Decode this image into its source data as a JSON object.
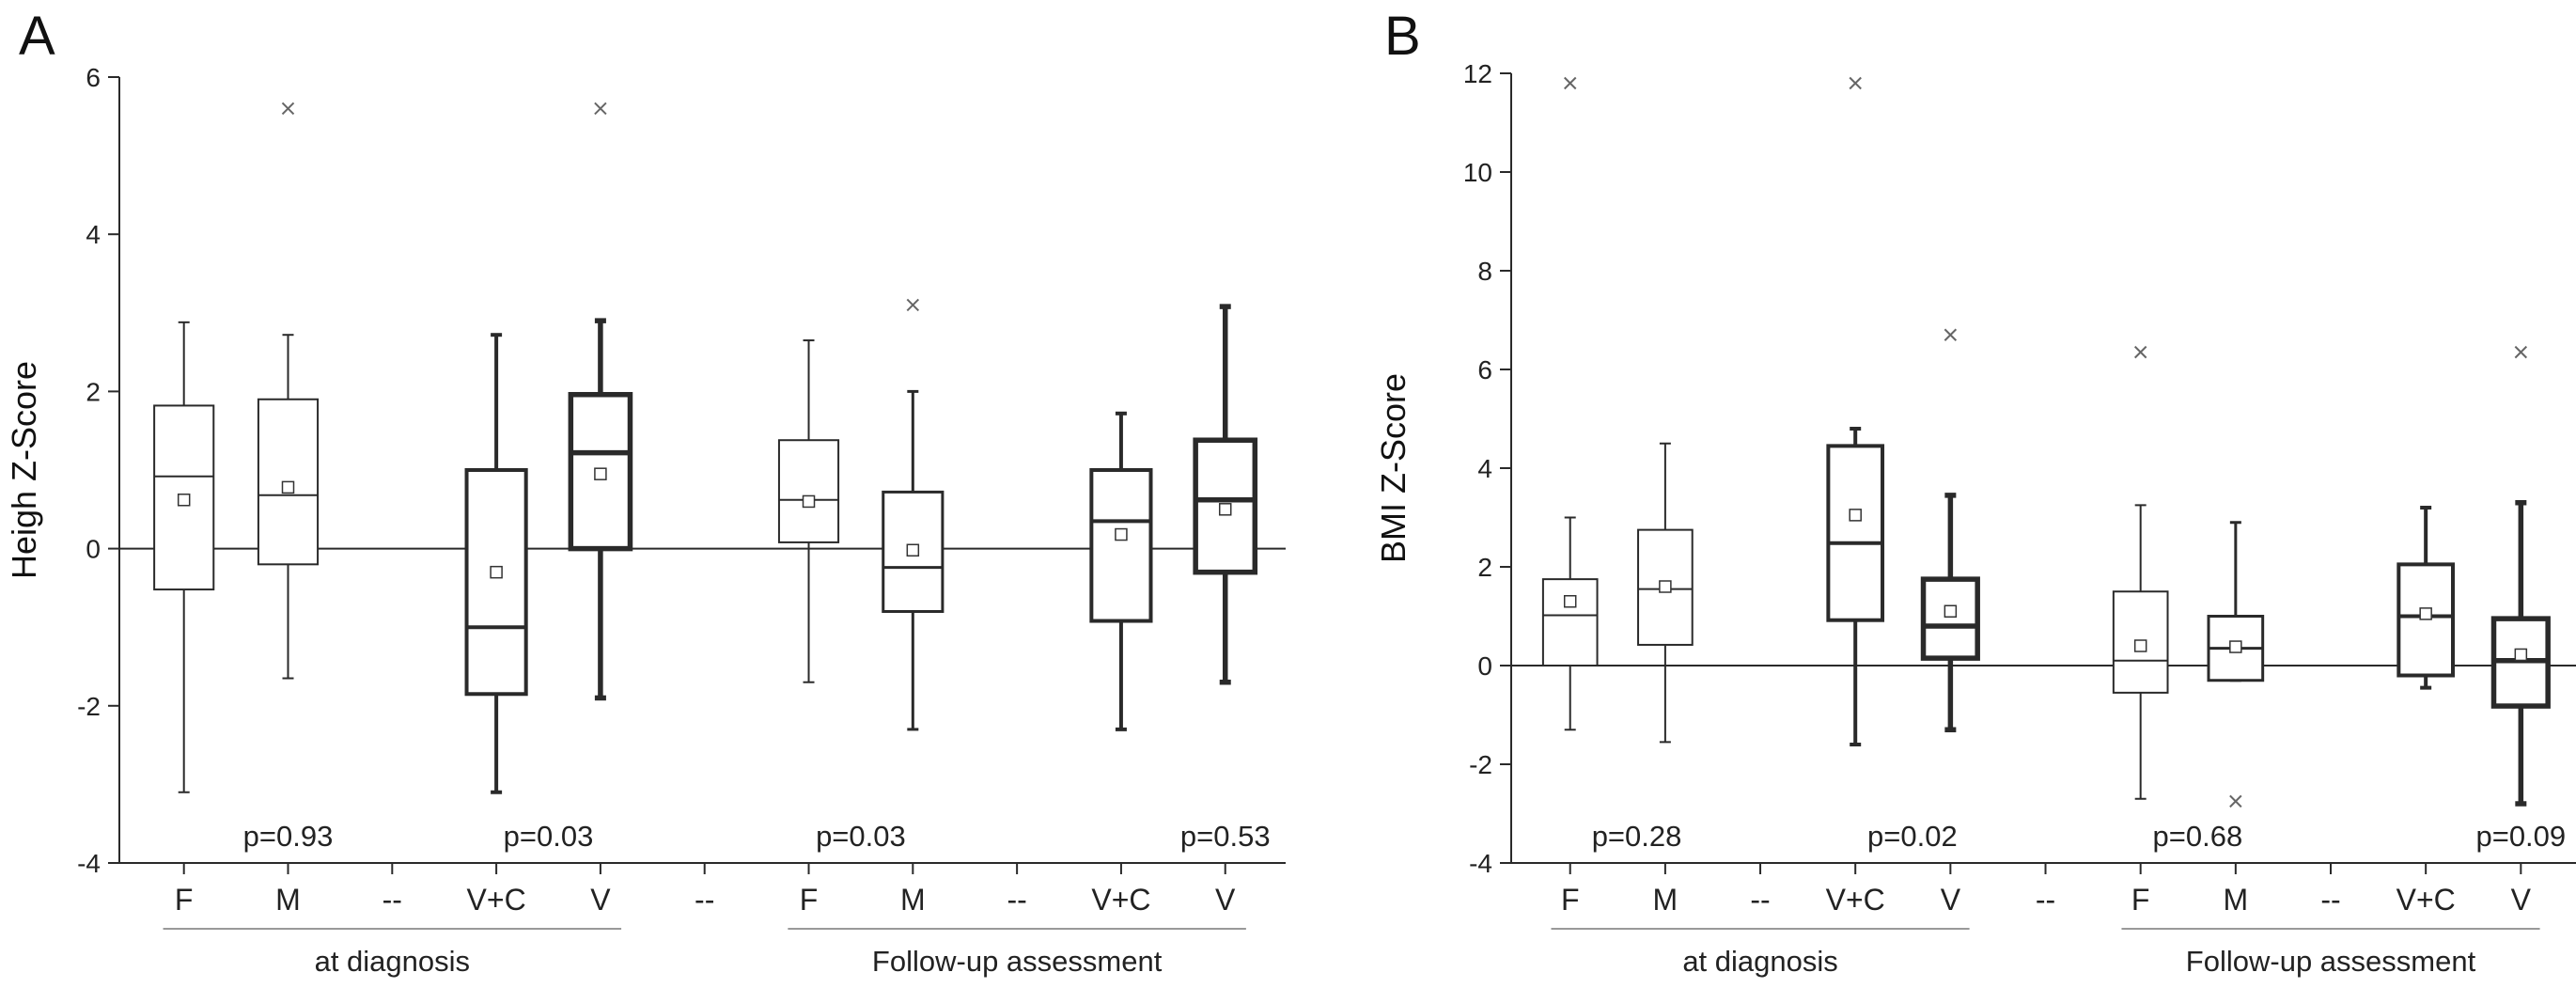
{
  "chart_data": [
    {
      "panel_label": "A",
      "type": "box",
      "ylabel": "Heigh Z-Score",
      "ylim": [
        -4,
        6
      ],
      "yticks": [
        -4,
        -2,
        0,
        2,
        4,
        6
      ],
      "reference_line": 0,
      "categories": [
        "F",
        "M",
        "--",
        "V+C",
        "V",
        "--",
        "F",
        "M",
        "--",
        "V+C",
        "V"
      ],
      "groups": [
        {
          "label": "at diagnosis",
          "from": 0,
          "to": 4
        },
        {
          "label": "Follow-up assessment",
          "from": 6,
          "to": 10
        }
      ],
      "p_values": [
        {
          "text": "p=0.93",
          "at": 1.0
        },
        {
          "text": "p=0.03",
          "at": 3.5
        },
        {
          "text": "p=0.03",
          "at": 6.5
        },
        {
          "text": "p=0.53",
          "at": 10.0
        }
      ],
      "boxes": [
        {
          "category": "F",
          "pos": 0,
          "style": "thin",
          "q1": -0.52,
          "median": 0.92,
          "q3": 1.82,
          "whisker_low": -3.1,
          "whisker_high": 2.88,
          "mean": 0.62,
          "outliers": []
        },
        {
          "category": "M",
          "pos": 1,
          "style": "thin",
          "q1": -0.2,
          "median": 0.68,
          "q3": 1.9,
          "whisker_low": -1.65,
          "whisker_high": 2.72,
          "mean": 0.78,
          "outliers": [
            5.6
          ]
        },
        {
          "category": "V+C",
          "pos": 3,
          "style": "thick",
          "q1": -1.85,
          "median": -1.0,
          "q3": 1.0,
          "whisker_low": -3.1,
          "whisker_high": 2.72,
          "mean": -0.3,
          "outliers": []
        },
        {
          "category": "V",
          "pos": 4,
          "style": "bold",
          "q1": 0.0,
          "median": 1.22,
          "q3": 1.96,
          "whisker_low": -1.9,
          "whisker_high": 2.9,
          "mean": 0.95,
          "outliers": [
            5.6
          ]
        },
        {
          "category": "F",
          "pos": 6,
          "style": "thin",
          "q1": 0.08,
          "median": 0.62,
          "q3": 1.38,
          "whisker_low": -1.7,
          "whisker_high": 2.65,
          "mean": 0.6,
          "outliers": []
        },
        {
          "category": "M",
          "pos": 7,
          "style": "medium",
          "q1": -0.8,
          "median": -0.24,
          "q3": 0.72,
          "whisker_low": -2.3,
          "whisker_high": 2.0,
          "mean": -0.02,
          "outliers": [
            3.1
          ]
        },
        {
          "category": "V+C",
          "pos": 9,
          "style": "thick",
          "q1": -0.92,
          "median": 0.35,
          "q3": 1.0,
          "whisker_low": -2.3,
          "whisker_high": 1.72,
          "mean": 0.18,
          "outliers": []
        },
        {
          "category": "V",
          "pos": 10,
          "style": "bold",
          "q1": -0.3,
          "median": 0.62,
          "q3": 1.38,
          "whisker_low": -1.7,
          "whisker_high": 3.08,
          "mean": 0.5,
          "outliers": []
        }
      ]
    },
    {
      "panel_label": "B",
      "type": "box",
      "ylabel": "BMI Z-Score",
      "ylim": [
        -4,
        12
      ],
      "yticks": [
        -4,
        -2,
        0,
        2,
        4,
        6,
        8,
        10,
        12
      ],
      "reference_line": 0,
      "categories": [
        "F",
        "M",
        "--",
        "V+C",
        "V",
        "--",
        "F",
        "M",
        "--",
        "V+C",
        "V"
      ],
      "groups": [
        {
          "label": "at diagnosis",
          "from": 0,
          "to": 4
        },
        {
          "label": "Follow-up assessment",
          "from": 6,
          "to": 10
        }
      ],
      "p_values": [
        {
          "text": "p=0.28",
          "at": 0.7
        },
        {
          "text": "p=0.02",
          "at": 3.6
        },
        {
          "text": "p=0.68",
          "at": 6.6
        },
        {
          "text": "p=0.09",
          "at": 10.0
        }
      ],
      "boxes": [
        {
          "category": "F",
          "pos": 0,
          "style": "thin",
          "q1": 0.0,
          "median": 1.02,
          "q3": 1.75,
          "whisker_low": -1.3,
          "whisker_high": 3.0,
          "mean": 1.3,
          "outliers": [
            11.8
          ]
        },
        {
          "category": "M",
          "pos": 1,
          "style": "thin",
          "q1": 0.42,
          "median": 1.55,
          "q3": 2.75,
          "whisker_low": -1.55,
          "whisker_high": 4.5,
          "mean": 1.6,
          "outliers": []
        },
        {
          "category": "V+C",
          "pos": 3,
          "style": "thick",
          "q1": 0.92,
          "median": 2.48,
          "q3": 4.45,
          "whisker_low": -1.6,
          "whisker_high": 4.8,
          "mean": 3.05,
          "outliers": [
            11.8
          ]
        },
        {
          "category": "V",
          "pos": 4,
          "style": "bold",
          "q1": 0.15,
          "median": 0.8,
          "q3": 1.75,
          "whisker_low": -1.3,
          "whisker_high": 3.45,
          "mean": 1.1,
          "outliers": [
            6.7
          ]
        },
        {
          "category": "F",
          "pos": 6,
          "style": "thin",
          "q1": -0.55,
          "median": 0.1,
          "q3": 1.5,
          "whisker_low": -2.7,
          "whisker_high": 3.25,
          "mean": 0.4,
          "outliers": [
            6.35
          ]
        },
        {
          "category": "M",
          "pos": 7,
          "style": "medium",
          "q1": -0.3,
          "median": 0.35,
          "q3": 1.0,
          "whisker_low": -0.3,
          "whisker_high": 2.9,
          "mean": 0.38,
          "outliers": [
            -2.75
          ]
        },
        {
          "category": "V+C",
          "pos": 9,
          "style": "thick",
          "q1": -0.2,
          "median": 1.0,
          "q3": 2.05,
          "whisker_low": -0.45,
          "whisker_high": 3.2,
          "mean": 1.05,
          "outliers": []
        },
        {
          "category": "V",
          "pos": 10,
          "style": "bold",
          "q1": -0.82,
          "median": 0.1,
          "q3": 0.95,
          "whisker_low": -2.8,
          "whisker_high": 3.3,
          "mean": 0.22,
          "outliers": [
            6.35
          ]
        }
      ]
    }
  ]
}
